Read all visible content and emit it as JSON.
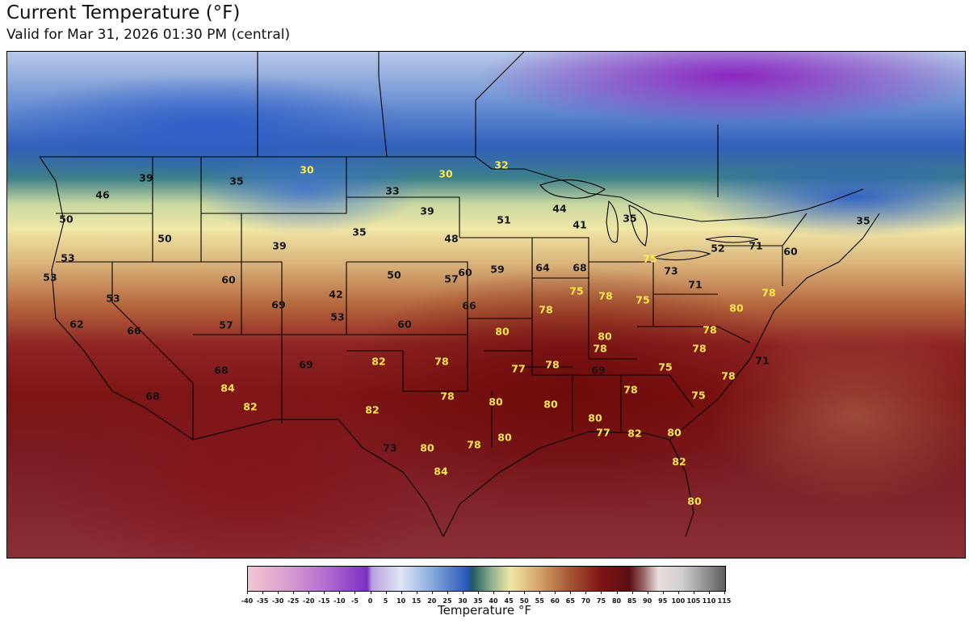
{
  "header": {
    "title": "Current Temperature (°F)",
    "subtitle": "Valid for Mar 31, 2026 01:30 PM (central)"
  },
  "colors": {
    "cold_label": "#141414",
    "warm_label": "#ffe94a",
    "border": "#000000"
  },
  "map": {
    "region": "Contiguous United States",
    "readings": [
      {
        "value": "39",
        "color": "dark"
      },
      {
        "value": "46",
        "color": "dark"
      },
      {
        "value": "35",
        "color": "dark"
      },
      {
        "value": "30",
        "color": "bright"
      },
      {
        "value": "30",
        "color": "bright"
      },
      {
        "value": "32",
        "color": "bright"
      },
      {
        "value": "33",
        "color": "dark"
      },
      {
        "value": "50",
        "color": "dark"
      },
      {
        "value": "39",
        "color": "dark"
      },
      {
        "value": "44",
        "color": "dark"
      },
      {
        "value": "51",
        "color": "dark"
      },
      {
        "value": "41",
        "color": "dark"
      },
      {
        "value": "35",
        "color": "dark"
      },
      {
        "value": "35",
        "color": "dark"
      },
      {
        "value": "50",
        "color": "dark"
      },
      {
        "value": "35",
        "color": "dark"
      },
      {
        "value": "48",
        "color": "dark"
      },
      {
        "value": "39",
        "color": "dark"
      },
      {
        "value": "53",
        "color": "dark"
      },
      {
        "value": "53",
        "color": "dark"
      },
      {
        "value": "60",
        "color": "dark"
      },
      {
        "value": "50",
        "color": "dark"
      },
      {
        "value": "60",
        "color": "dark"
      },
      {
        "value": "57",
        "color": "dark"
      },
      {
        "value": "59",
        "color": "dark"
      },
      {
        "value": "64",
        "color": "dark"
      },
      {
        "value": "68",
        "color": "dark"
      },
      {
        "value": "75",
        "color": "bright"
      },
      {
        "value": "73",
        "color": "dark"
      },
      {
        "value": "52",
        "color": "dark"
      },
      {
        "value": "71",
        "color": "dark"
      },
      {
        "value": "60",
        "color": "dark"
      },
      {
        "value": "53",
        "color": "dark"
      },
      {
        "value": "69",
        "color": "dark"
      },
      {
        "value": "42",
        "color": "dark"
      },
      {
        "value": "53",
        "color": "dark"
      },
      {
        "value": "66",
        "color": "dark"
      },
      {
        "value": "75",
        "color": "bright"
      },
      {
        "value": "78",
        "color": "bright"
      },
      {
        "value": "71",
        "color": "dark"
      },
      {
        "value": "78",
        "color": "bright"
      },
      {
        "value": "62",
        "color": "dark"
      },
      {
        "value": "66",
        "color": "dark"
      },
      {
        "value": "57",
        "color": "dark"
      },
      {
        "value": "60",
        "color": "dark"
      },
      {
        "value": "78",
        "color": "bright"
      },
      {
        "value": "75",
        "color": "bright"
      },
      {
        "value": "80",
        "color": "bright"
      },
      {
        "value": "80",
        "color": "bright"
      },
      {
        "value": "78",
        "color": "bright"
      },
      {
        "value": "80",
        "color": "bright"
      },
      {
        "value": "78",
        "color": "bright"
      },
      {
        "value": "78",
        "color": "bright"
      },
      {
        "value": "69",
        "color": "dark"
      },
      {
        "value": "82",
        "color": "bright"
      },
      {
        "value": "78",
        "color": "bright"
      },
      {
        "value": "78",
        "color": "bright"
      },
      {
        "value": "77",
        "color": "bright"
      },
      {
        "value": "69",
        "color": "dark"
      },
      {
        "value": "78",
        "color": "bright"
      },
      {
        "value": "75",
        "color": "bright"
      },
      {
        "value": "71",
        "color": "dark"
      },
      {
        "value": "68",
        "color": "dark"
      },
      {
        "value": "84",
        "color": "bright"
      },
      {
        "value": "82",
        "color": "bright"
      },
      {
        "value": "68",
        "color": "dark"
      },
      {
        "value": "78",
        "color": "bright"
      },
      {
        "value": "80",
        "color": "bright"
      },
      {
        "value": "80",
        "color": "bright"
      },
      {
        "value": "78",
        "color": "bright"
      },
      {
        "value": "75",
        "color": "bright"
      },
      {
        "value": "82",
        "color": "bright"
      },
      {
        "value": "80",
        "color": "bright"
      },
      {
        "value": "77",
        "color": "bright"
      },
      {
        "value": "82",
        "color": "bright"
      },
      {
        "value": "80",
        "color": "bright"
      },
      {
        "value": "73",
        "color": "dark"
      },
      {
        "value": "80",
        "color": "bright"
      },
      {
        "value": "78",
        "color": "bright"
      },
      {
        "value": "80",
        "color": "bright"
      },
      {
        "value": "84",
        "color": "bright"
      },
      {
        "value": "82",
        "color": "bright"
      },
      {
        "value": "80",
        "color": "bright"
      }
    ]
  },
  "colorbar": {
    "label": "Temperature °F",
    "ticks": [
      "-40",
      "-35",
      "-30",
      "-25",
      "-20",
      "-15",
      "-10",
      "-5",
      "0",
      "5",
      "10",
      "15",
      "20",
      "25",
      "30",
      "35",
      "40",
      "45",
      "50",
      "55",
      "60",
      "65",
      "70",
      "75",
      "80",
      "85",
      "90",
      "95",
      "100",
      "105",
      "110",
      "115"
    ]
  }
}
